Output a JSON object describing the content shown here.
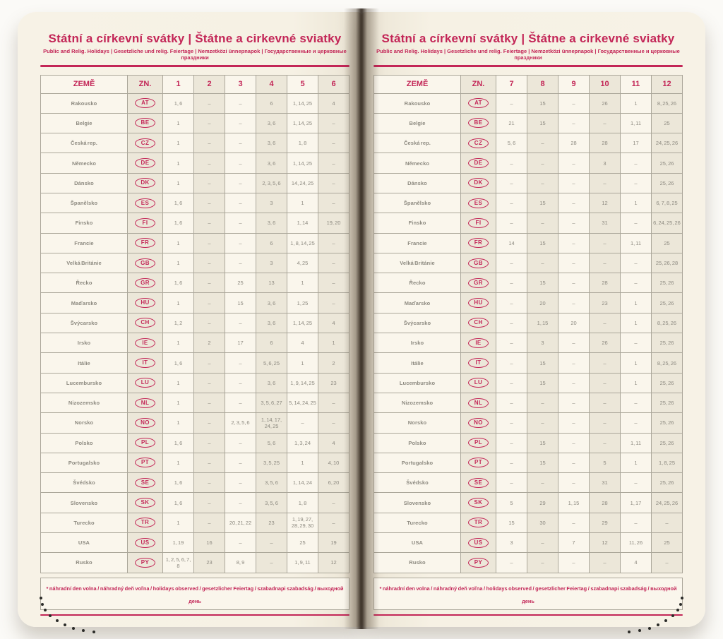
{
  "shared": {
    "title": "Státní a církevní svátky | Štátne a cirkevné sviatky",
    "subtitle": "Public and Relig. Holidays | Gesetzliche und relig. Feiertage | Nemzetközi ünnepnapok | Государственные и церковные праздники",
    "columns": {
      "country": "ZEMĚ",
      "code": "ZN."
    },
    "footnote": "* náhradní den volna / náhradný deň voľna / holidays observed / gesetzlicher Feiertag / szabadnapi szabadság / выходной день"
  },
  "colors": {
    "accent": "#c32657",
    "page": "#f6f1e4",
    "cell_light": "#faf6ec",
    "cell_tint": "#ece7d9",
    "border": "#aba79a",
    "value_text": "#8d8a80"
  },
  "left_table": {
    "months": [
      "1",
      "2",
      "3",
      "4",
      "5",
      "6"
    ],
    "rows": [
      {
        "country": "Rakousko",
        "code": "AT",
        "values": [
          "1, 6",
          "–",
          "–",
          "6",
          "1, 14, 25",
          "4"
        ]
      },
      {
        "country": "Belgie",
        "code": "BE",
        "values": [
          "1",
          "–",
          "–",
          "3, 6",
          "1, 14, 25",
          "–"
        ]
      },
      {
        "country": "Česká rep.",
        "code": "CZ",
        "values": [
          "1",
          "–",
          "–",
          "3, 6",
          "1, 8",
          "–"
        ]
      },
      {
        "country": "Německo",
        "code": "DE",
        "values": [
          "1",
          "–",
          "–",
          "3, 6",
          "1, 14, 25",
          "–"
        ]
      },
      {
        "country": "Dánsko",
        "code": "DK",
        "values": [
          "1",
          "–",
          "–",
          "2, 3, 5, 6",
          "14, 24, 25",
          "–"
        ]
      },
      {
        "country": "Španělsko",
        "code": "ES",
        "values": [
          "1, 6",
          "–",
          "–",
          "3",
          "1",
          "–"
        ]
      },
      {
        "country": "Finsko",
        "code": "FI",
        "values": [
          "1, 6",
          "–",
          "–",
          "3, 6",
          "1, 14",
          "19, 20"
        ]
      },
      {
        "country": "Francie",
        "code": "FR",
        "values": [
          "1",
          "–",
          "–",
          "6",
          "1, 8, 14, 25",
          "–"
        ]
      },
      {
        "country": "Velká Británie",
        "code": "GB",
        "values": [
          "1",
          "–",
          "–",
          "3",
          "4, 25",
          "–"
        ]
      },
      {
        "country": "Řecko",
        "code": "GR",
        "values": [
          "1, 6",
          "–",
          "25",
          "13",
          "1",
          "–"
        ]
      },
      {
        "country": "Maďarsko",
        "code": "HU",
        "values": [
          "1",
          "–",
          "15",
          "3, 6",
          "1, 25",
          "–"
        ]
      },
      {
        "country": "Švýcarsko",
        "code": "CH",
        "values": [
          "1, 2",
          "–",
          "–",
          "3, 6",
          "1, 14, 25",
          "4"
        ]
      },
      {
        "country": "Irsko",
        "code": "IE",
        "values": [
          "1",
          "2",
          "17",
          "6",
          "4",
          "1"
        ]
      },
      {
        "country": "Itálie",
        "code": "IT",
        "values": [
          "1, 6",
          "–",
          "–",
          "5, 6, 25",
          "1",
          "2"
        ]
      },
      {
        "country": "Lucembursko",
        "code": "LU",
        "values": [
          "1",
          "–",
          "–",
          "3, 6",
          "1, 9, 14, 25",
          "23"
        ]
      },
      {
        "country": "Nizozemsko",
        "code": "NL",
        "values": [
          "1",
          "–",
          "–",
          "3, 5, 6, 27",
          "5, 14, 24, 25",
          "–"
        ]
      },
      {
        "country": "Norsko",
        "code": "NO",
        "values": [
          "1",
          "–",
          "2, 3, 5, 6",
          "1, 14, 17, 24, 25",
          "–",
          "–"
        ]
      },
      {
        "country": "Polsko",
        "code": "PL",
        "values": [
          "1, 6",
          "–",
          "–",
          "5, 6",
          "1, 3, 24",
          "4"
        ]
      },
      {
        "country": "Portugalsko",
        "code": "PT",
        "values": [
          "1",
          "–",
          "–",
          "3, 5, 25",
          "1",
          "4, 10"
        ]
      },
      {
        "country": "Švédsko",
        "code": "SE",
        "values": [
          "1, 6",
          "–",
          "–",
          "3, 5, 6",
          "1, 14, 24",
          "6, 20"
        ]
      },
      {
        "country": "Slovensko",
        "code": "SK",
        "values": [
          "1, 6",
          "–",
          "–",
          "3, 5, 6",
          "1, 8",
          "–"
        ]
      },
      {
        "country": "Turecko",
        "code": "TR",
        "values": [
          "1",
          "–",
          "20, 21, 22",
          "23",
          "1, 19, 27, 28, 29, 30",
          "–"
        ]
      },
      {
        "country": "USA",
        "code": "US",
        "values": [
          "1, 19",
          "16",
          "–",
          "–",
          "25",
          "19"
        ]
      },
      {
        "country": "Rusko",
        "code": "PY",
        "values": [
          "1, 2, 5, 6, 7, 8",
          "23",
          "8, 9",
          "–",
          "1, 9, 11",
          "12"
        ]
      }
    ]
  },
  "right_table": {
    "months": [
      "7",
      "8",
      "9",
      "10",
      "11",
      "12"
    ],
    "rows": [
      {
        "country": "Rakousko",
        "code": "AT",
        "values": [
          "–",
          "15",
          "–",
          "26",
          "1",
          "8, 25, 26"
        ]
      },
      {
        "country": "Belgie",
        "code": "BE",
        "values": [
          "21",
          "15",
          "–",
          "–",
          "1, 11",
          "25"
        ]
      },
      {
        "country": "Česká rep.",
        "code": "CZ",
        "values": [
          "5, 6",
          "–",
          "28",
          "28",
          "17",
          "24, 25, 26"
        ]
      },
      {
        "country": "Německo",
        "code": "DE",
        "values": [
          "–",
          "–",
          "–",
          "3",
          "–",
          "25, 26"
        ]
      },
      {
        "country": "Dánsko",
        "code": "DK",
        "values": [
          "–",
          "–",
          "–",
          "–",
          "–",
          "25, 26"
        ]
      },
      {
        "country": "Španělsko",
        "code": "ES",
        "values": [
          "–",
          "15",
          "–",
          "12",
          "1",
          "6, 7, 8, 25"
        ]
      },
      {
        "country": "Finsko",
        "code": "FI",
        "values": [
          "–",
          "–",
          "–",
          "31",
          "–",
          "6, 24, 25, 26"
        ]
      },
      {
        "country": "Francie",
        "code": "FR",
        "values": [
          "14",
          "15",
          "–",
          "–",
          "1, 11",
          "25"
        ]
      },
      {
        "country": "Velká Británie",
        "code": "GB",
        "values": [
          "–",
          "–",
          "–",
          "–",
          "–",
          "25, 26, 28"
        ]
      },
      {
        "country": "Řecko",
        "code": "GR",
        "values": [
          "–",
          "15",
          "–",
          "28",
          "–",
          "25, 26"
        ]
      },
      {
        "country": "Maďarsko",
        "code": "HU",
        "values": [
          "–",
          "20",
          "–",
          "23",
          "1",
          "25, 26"
        ]
      },
      {
        "country": "Švýcarsko",
        "code": "CH",
        "values": [
          "–",
          "1, 15",
          "20",
          "–",
          "1",
          "8, 25, 26"
        ]
      },
      {
        "country": "Irsko",
        "code": "IE",
        "values": [
          "–",
          "3",
          "–",
          "26",
          "–",
          "25, 26"
        ]
      },
      {
        "country": "Itálie",
        "code": "IT",
        "values": [
          "–",
          "15",
          "–",
          "–",
          "1",
          "8, 25, 26"
        ]
      },
      {
        "country": "Lucembursko",
        "code": "LU",
        "values": [
          "–",
          "15",
          "–",
          "–",
          "1",
          "25, 26"
        ]
      },
      {
        "country": "Nizozemsko",
        "code": "NL",
        "values": [
          "–",
          "–",
          "–",
          "–",
          "–",
          "25, 26"
        ]
      },
      {
        "country": "Norsko",
        "code": "NO",
        "values": [
          "–",
          "–",
          "–",
          "–",
          "–",
          "25, 26"
        ]
      },
      {
        "country": "Polsko",
        "code": "PL",
        "values": [
          "–",
          "15",
          "–",
          "–",
          "1, 11",
          "25, 26"
        ]
      },
      {
        "country": "Portugalsko",
        "code": "PT",
        "values": [
          "–",
          "15",
          "–",
          "5",
          "1",
          "1, 8, 25"
        ]
      },
      {
        "country": "Švédsko",
        "code": "SE",
        "values": [
          "–",
          "–",
          "–",
          "31",
          "–",
          "25, 26"
        ]
      },
      {
        "country": "Slovensko",
        "code": "SK",
        "values": [
          "5",
          "29",
          "1, 15",
          "28",
          "1, 17",
          "24, 25, 26"
        ]
      },
      {
        "country": "Turecko",
        "code": "TR",
        "values": [
          "15",
          "30",
          "–",
          "29",
          "–",
          "–"
        ]
      },
      {
        "country": "USA",
        "code": "US",
        "values": [
          "3",
          "–",
          "7",
          "12",
          "11, 26",
          "25"
        ]
      },
      {
        "country": "Rusko",
        "code": "PY",
        "values": [
          "–",
          "–",
          "–",
          "–",
          "4",
          "–"
        ]
      }
    ]
  }
}
